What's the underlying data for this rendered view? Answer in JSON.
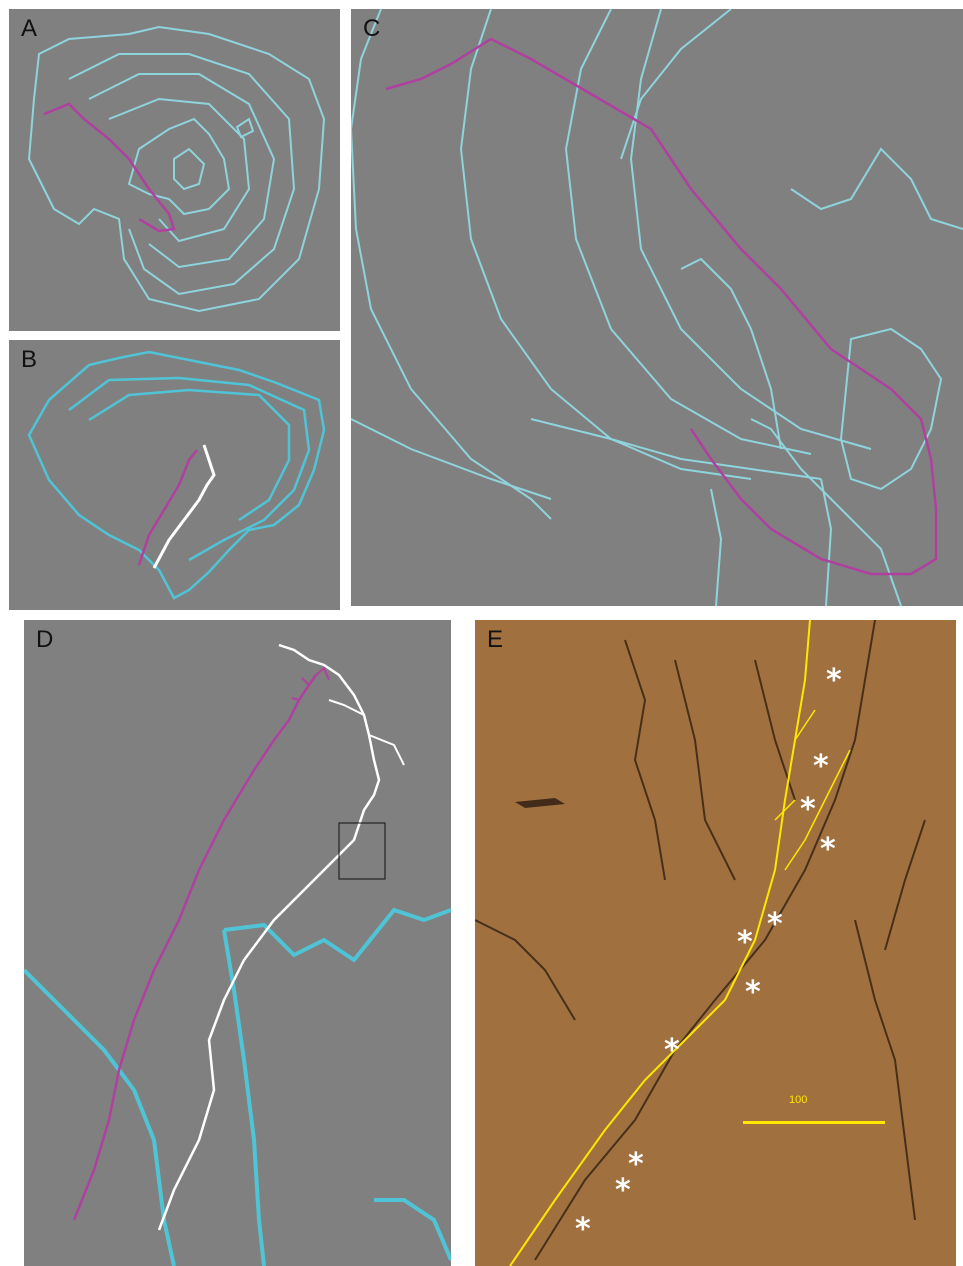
{
  "panels": {
    "a": {
      "label": "A"
    },
    "b": {
      "label": "B"
    },
    "c": {
      "label": "C"
    },
    "d": {
      "label": "D"
    },
    "e": {
      "label": "E"
    }
  },
  "scale_bar": {
    "label": "100"
  },
  "markers": {
    "symbol": "*"
  },
  "colors": {
    "background_gray": "#808080",
    "contour_cyan": "#8fd3dc",
    "contour_cyan_bright": "#4fc4d6",
    "axon_magenta": "#b040a0",
    "axon_white": "#ffffff",
    "trace_yellow": "#ffe600",
    "tissue_brown": "#a0713f"
  }
}
